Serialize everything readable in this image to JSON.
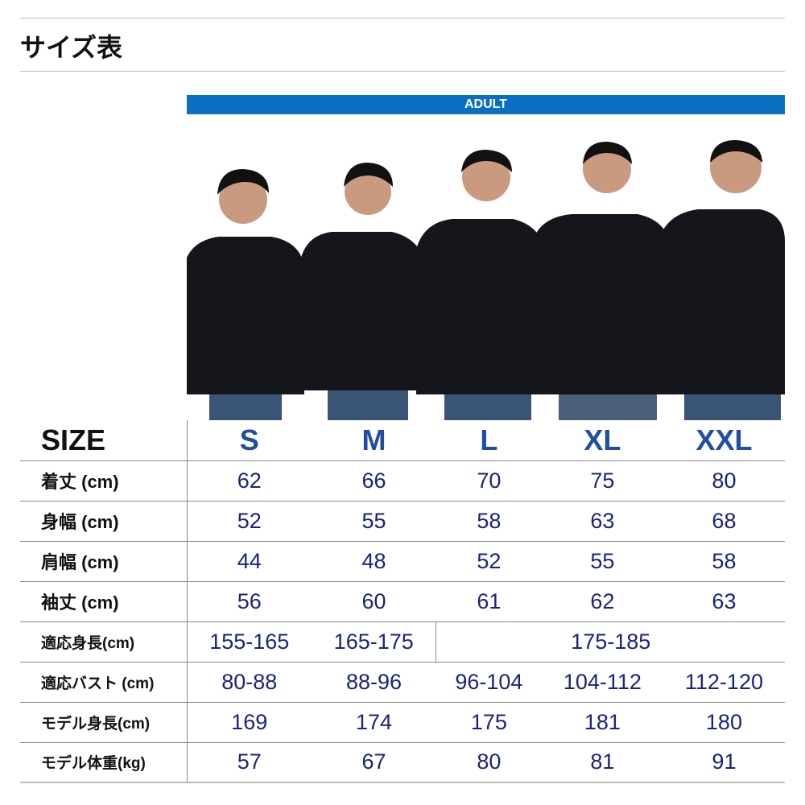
{
  "title": "サイズ表",
  "band_label": "ADULT",
  "header": {
    "label": "SIZE",
    "sizes": [
      "S",
      "M",
      "L",
      "XL",
      "XXL"
    ]
  },
  "rows": [
    {
      "label": "着丈 (cm)",
      "values": [
        "62",
        "66",
        "70",
        "75",
        "80"
      ]
    },
    {
      "label": "身幅 (cm)",
      "values": [
        "52",
        "55",
        "58",
        "63",
        "68"
      ]
    },
    {
      "label": "肩幅 (cm)",
      "values": [
        "44",
        "48",
        "52",
        "55",
        "58"
      ]
    },
    {
      "label": "袖丈 (cm)",
      "values": [
        "56",
        "60",
        "61",
        "62",
        "63"
      ]
    },
    {
      "label": "適応身長(cm)",
      "values": [
        "155-165",
        "165-175",
        "175-185"
      ]
    },
    {
      "label": "適応バスト (cm)",
      "values": [
        "80-88",
        "88-96",
        "96-104",
        "104-112",
        "112-120"
      ]
    },
    {
      "label": "モデル身長(cm)",
      "values": [
        "169",
        "174",
        "175",
        "181",
        "180"
      ]
    },
    {
      "label": "モデル体重(kg)",
      "values": [
        "57",
        "67",
        "80",
        "81",
        "91"
      ]
    }
  ],
  "colors": {
    "band": "#0a6fc2",
    "size_header": "#1f4ea3",
    "values": "#1a237e"
  }
}
